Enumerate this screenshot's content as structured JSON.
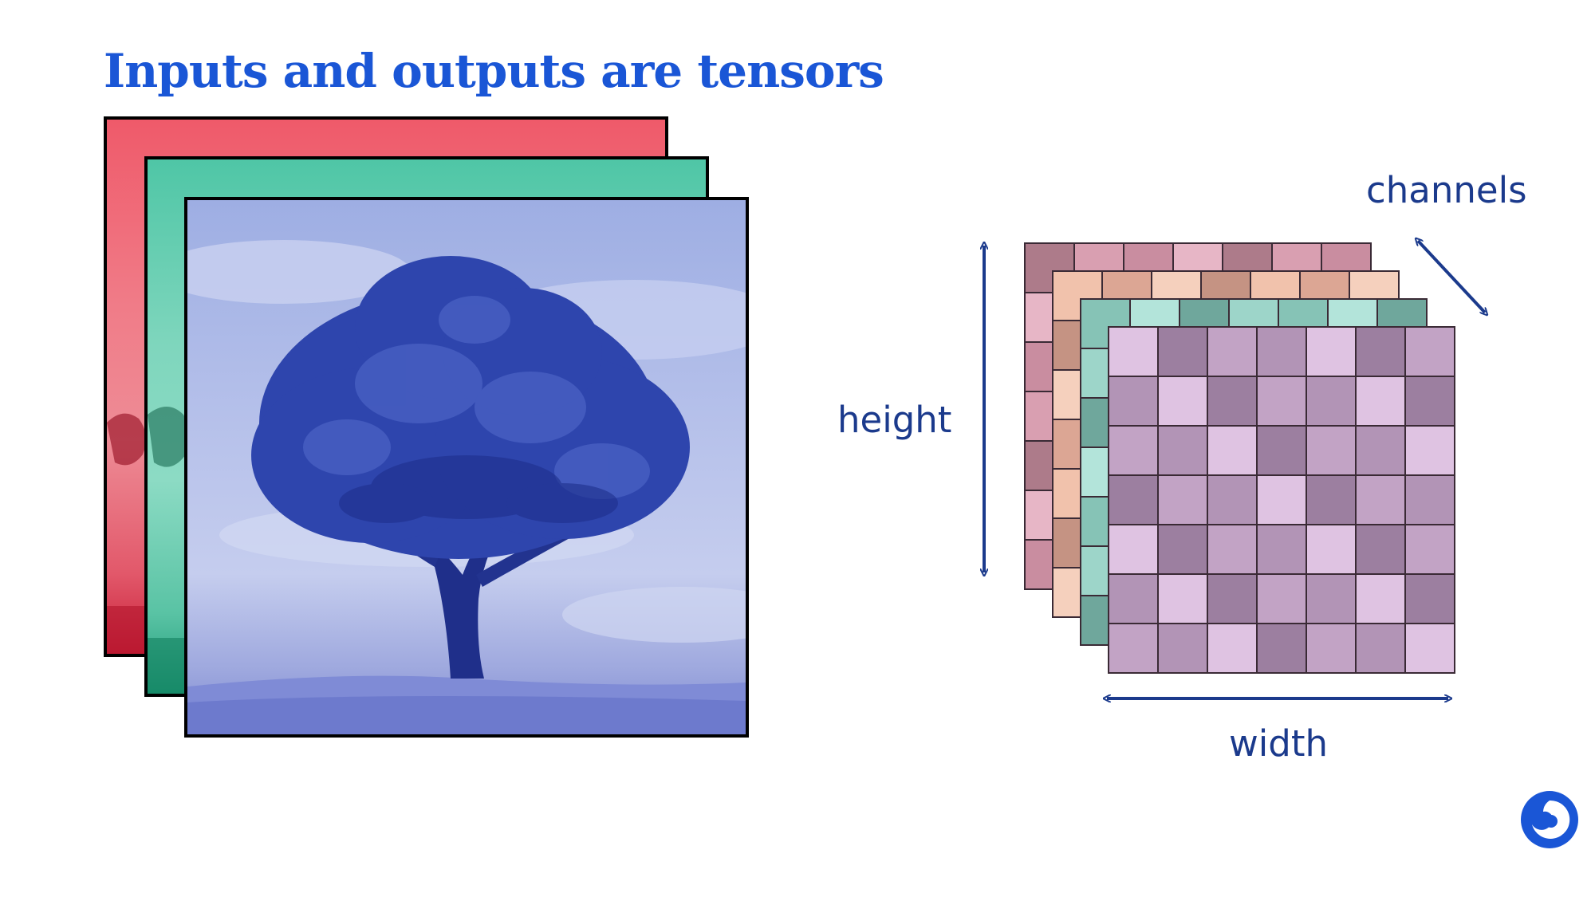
{
  "title": "Inputs and outputs are tensors",
  "labels": {
    "channels": "channels",
    "height": "height",
    "width": "width"
  },
  "image_layers": [
    {
      "channel": "red",
      "color": "#ef5a6a"
    },
    {
      "channel": "green",
      "color": "#4fc6a6"
    },
    {
      "channel": "blue",
      "color": "#9eaee3"
    }
  ],
  "tensor_grid": {
    "rows": 7,
    "cols": 7,
    "layers": [
      {
        "name": "layer-back-mauve",
        "shades": [
          "#ad7b8a",
          "#d99fb1",
          "#c98da0",
          "#e7b6c6"
        ]
      },
      {
        "name": "layer-peach",
        "shades": [
          "#c59383",
          "#f1c2ac",
          "#dca694",
          "#f5d0bd"
        ]
      },
      {
        "name": "layer-teal",
        "shades": [
          "#6fa79c",
          "#9dd5c9",
          "#86c3b6",
          "#b3e4da"
        ]
      },
      {
        "name": "layer-front-lilac",
        "shades": [
          "#9c7fa0",
          "#c2a3c5",
          "#b294b6",
          "#dfc3e2"
        ]
      }
    ]
  },
  "colors": {
    "title": "#1a56d6",
    "label": "#1b3a8c",
    "arrow": "#1b3a8c",
    "logo": "#1a56d6"
  },
  "logo_icon": "brand-swirl-icon"
}
